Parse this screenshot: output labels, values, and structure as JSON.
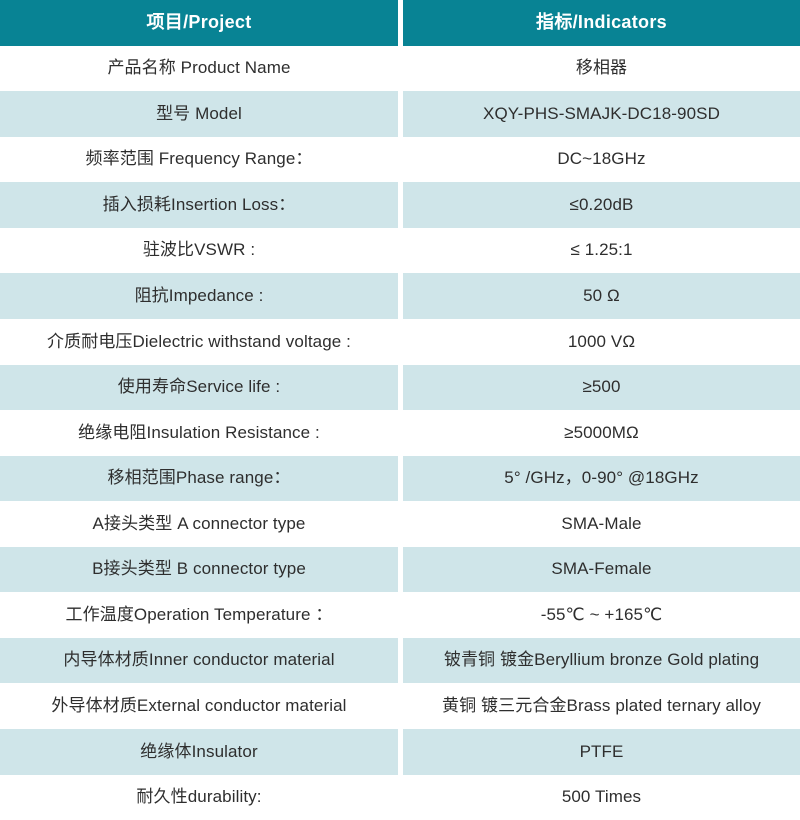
{
  "header": {
    "project": "项目/Project",
    "indicators": "指标/Indicators"
  },
  "colors": {
    "header_bg": "#088394",
    "alt_row_bg": "#cfe5e9",
    "row_bg": "#ffffff",
    "header_text": "#ffffff",
    "text": "#2e2e2e"
  },
  "rows": [
    {
      "label": "产品名称 Product Name",
      "value": "移相器"
    },
    {
      "label": "型号 Model",
      "value": "XQY-PHS-SMAJK-DC18-90SD"
    },
    {
      "label": "频率范围 Frequency Range：",
      "value": "DC~18GHz"
    },
    {
      "label": "插入损耗Insertion Loss：",
      "value": "≤0.20dB"
    },
    {
      "label": "驻波比VSWR :",
      "value": "≤ 1.25:1"
    },
    {
      "label": "阻抗Impedance :",
      "value": "50 Ω"
    },
    {
      "label": "介质耐电压Dielectric withstand voltage :",
      "value": "1000 VΩ"
    },
    {
      "label": "使用寿命Service life :",
      "value": "≥500"
    },
    {
      "label": "绝缘电阻Insulation Resistance :",
      "value": "≥5000MΩ"
    },
    {
      "label": "移相范围Phase range：",
      "value": "5° /GHz，0-90° @18GHz"
    },
    {
      "label": "A接头类型 A connector type",
      "value": "SMA-Male"
    },
    {
      "label": "B接头类型 B connector type",
      "value": "SMA-Female"
    },
    {
      "label": "工作温度Operation Temperature ：",
      "value": "-55℃ ~ +165℃"
    },
    {
      "label": "内导体材质Inner conductor material",
      "value": "铍青铜 镀金Beryllium bronze Gold plating"
    },
    {
      "label": "外导体材质External conductor material",
      "value": "黄铜 镀三元合金Brass plated ternary alloy"
    },
    {
      "label": "绝缘体Insulator",
      "value": "PTFE"
    },
    {
      "label": "耐久性durability:",
      "value": "500 Times"
    }
  ]
}
